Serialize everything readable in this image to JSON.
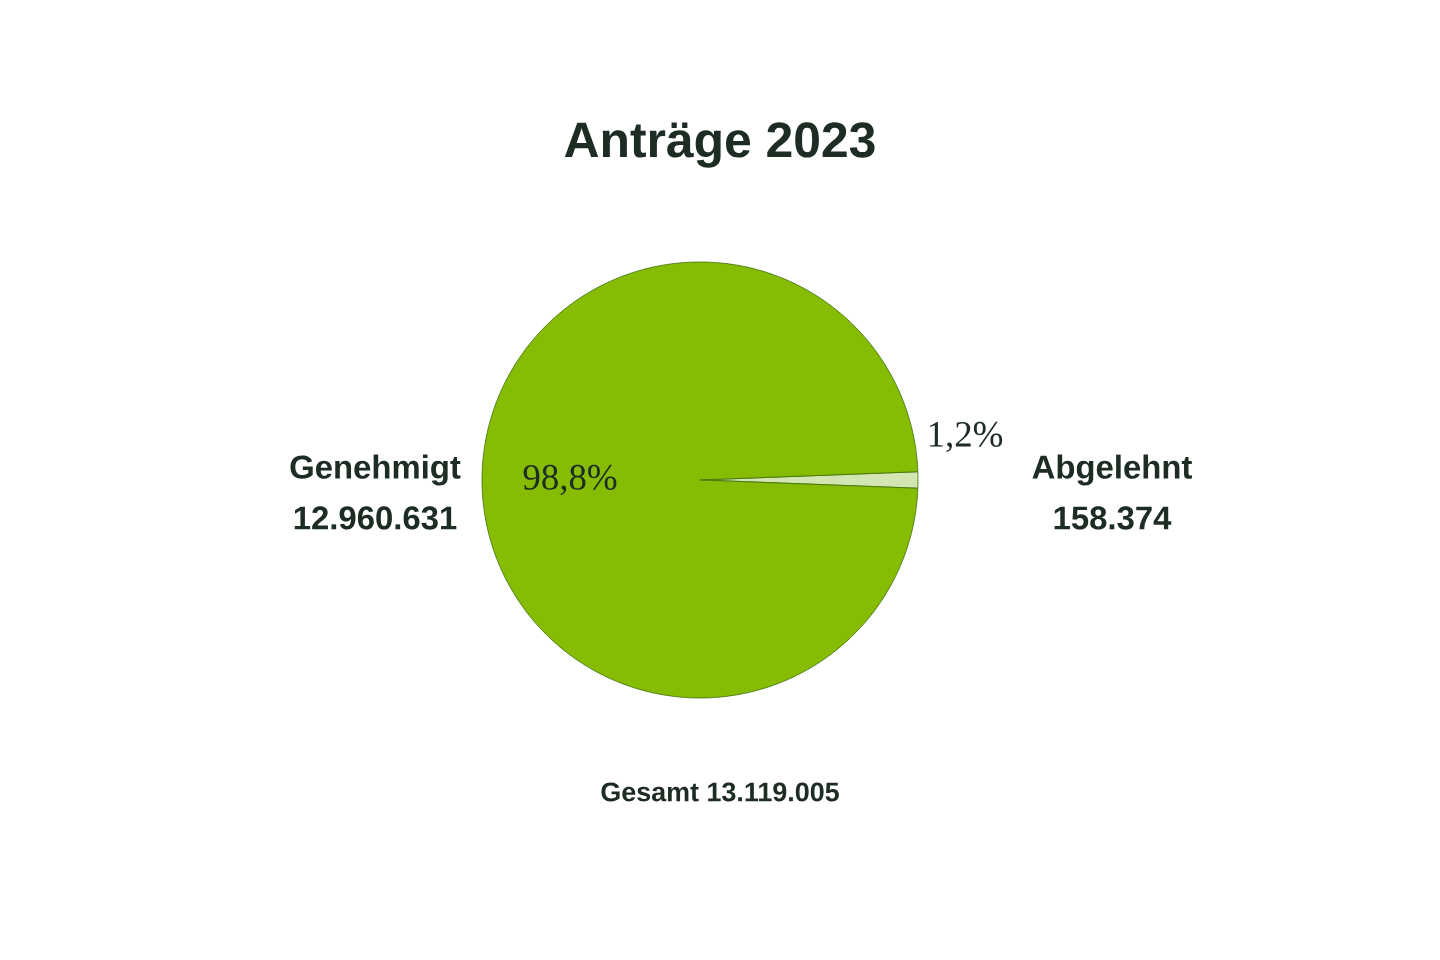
{
  "chart_data": {
    "type": "pie",
    "title": "Anträge 2023",
    "categories": [
      "Genehmigt",
      "Abgelehnt"
    ],
    "values": [
      12960631,
      158374
    ],
    "value_labels": [
      "12.960.631",
      "158.374"
    ],
    "colors": [
      "#86bc04",
      "#d3e5b0"
    ],
    "annotations": [
      "98,8%",
      "1,2%",
      "Gesamt 13.119.005"
    ]
  }
}
